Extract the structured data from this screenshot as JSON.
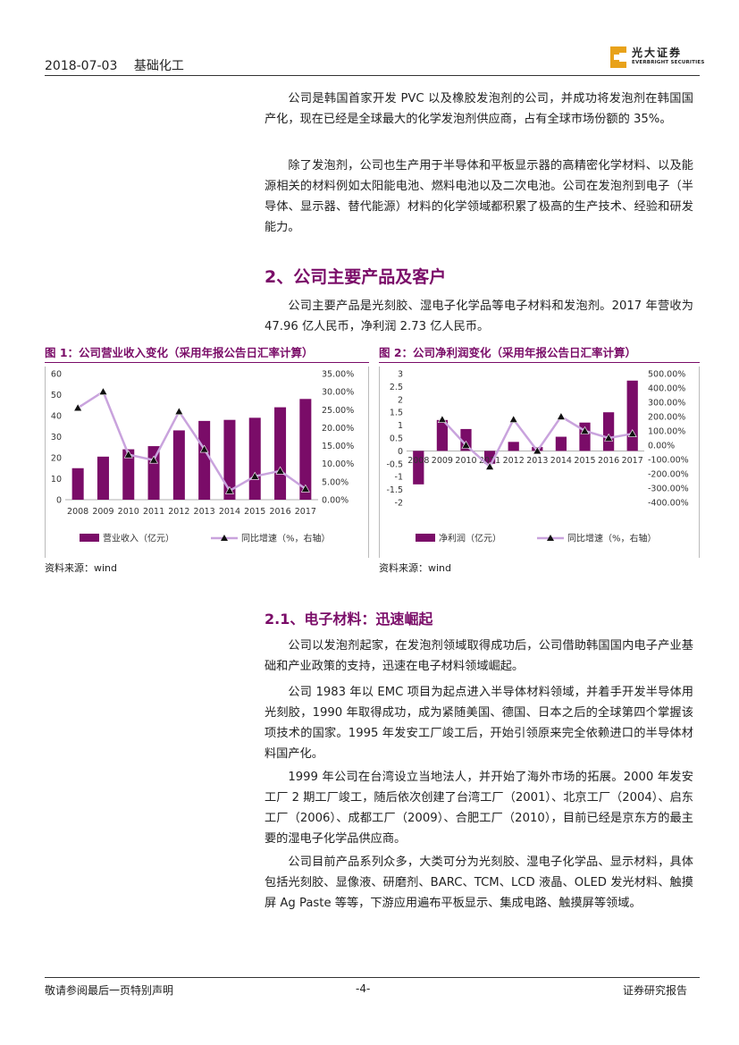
{
  "header": {
    "date": "2018-07-03",
    "category": "基础化工",
    "logo_cn": "光大证券",
    "logo_en": "EVERBRIGHT SECURITIES"
  },
  "paragraphs": [
    "公司是韩国首家开发 PVC 以及橡胶发泡剂的公司，并成功将发泡剂在韩国国产化，现在已经是全球最大的化学发泡剂供应商，占有全球市场份额的 35%。",
    "除了发泡剂，公司也生产用于半导体和平板显示器的高精密化学材料、以及能源相关的材料例如太阳能电池、燃料电池以及二次电池。公司在发泡剂到电子（半导体、显示器、替代能源）材料的化学领域都积累了极高的生产技术、经验和研发能力。"
  ],
  "section2": {
    "heading": "2、公司主要产品及客户",
    "paragraph": "公司主要产品是光刻胶、湿电子化学品等电子材料和发泡剂。2017 年营收为 47.96 亿人民币，净利润 2.73 亿人民币。"
  },
  "figure1": {
    "title": "图 1：公司营业收入变化（采用年报公告日汇率计算）",
    "source": "资料来源：wind"
  },
  "figure2": {
    "title": "图 2：公司净利润变化（采用年报公告日汇率计算）",
    "source": "资料来源：wind"
  },
  "chart_data": [
    {
      "type": "bar",
      "categories": [
        "2008",
        "2009",
        "2010",
        "2011",
        "2012",
        "2013",
        "2014",
        "2015",
        "2016",
        "2017"
      ],
      "series": [
        {
          "name": "营业收入（亿元）",
          "axis": "left",
          "values": [
            15,
            20.5,
            24,
            25.5,
            33,
            37.5,
            38,
            39,
            44,
            47.96
          ]
        },
        {
          "name": "同比增速（%，右轴）",
          "type": "line",
          "axis": "right",
          "values": [
            25.5,
            30,
            12.5,
            11,
            24.5,
            14,
            2.5,
            6.5,
            8,
            3
          ]
        }
      ],
      "ylim_left": [
        0,
        60
      ],
      "yticks_left": [
        "0",
        "10",
        "20",
        "30",
        "40",
        "50",
        "60"
      ],
      "ylim_right": [
        0,
        35
      ],
      "yticks_right": [
        "0.00%",
        "5.00%",
        "10.00%",
        "15.00%",
        "20.00%",
        "25.00%",
        "30.00%",
        "35.00%"
      ],
      "legend": "bottom",
      "colors": {
        "bar": "#7a0c68",
        "line": "#c9a3dd",
        "marker": "#111111"
      }
    },
    {
      "type": "bar",
      "categories": [
        "2008",
        "2009",
        "2010",
        "2011",
        "2012",
        "2013",
        "2014",
        "2015",
        "2016",
        "2017"
      ],
      "series": [
        {
          "name": "净利润（亿元）",
          "axis": "left",
          "values": [
            -1.3,
            1.2,
            0.85,
            -0.5,
            0.35,
            0.15,
            0.55,
            1.1,
            1.5,
            2.73
          ]
        },
        {
          "name": "同比增速（%，右轴）",
          "type": "line",
          "axis": "right",
          "values": [
            null,
            180,
            0,
            -150,
            180,
            -40,
            200,
            100,
            50,
            80
          ]
        }
      ],
      "ylim_left": [
        -2,
        3
      ],
      "yticks_left": [
        "-2",
        "-1.5",
        "-1",
        "-0.5",
        "0",
        "0.5",
        "1",
        "1.5",
        "2",
        "2.5",
        "3"
      ],
      "ylim_right": [
        -400,
        500
      ],
      "yticks_right": [
        "-400.00%",
        "-300.00%",
        "-200.00%",
        "-100.00%",
        "0.00%",
        "100.00%",
        "200.00%",
        "300.00%",
        "400.00%",
        "500.00%"
      ],
      "legend": "bottom",
      "colors": {
        "bar": "#7a0c68",
        "line": "#c9a3dd",
        "marker": "#111111"
      }
    }
  ],
  "section21": {
    "heading": "2.1、电子材料：迅速崛起",
    "paragraphs": [
      "公司以发泡剂起家，在发泡剂领域取得成功后，公司借助韩国国内电子产业基础和产业政策的支持，迅速在电子材料领域崛起。",
      "公司 1983 年以 EMC 项目为起点进入半导体材料领域，并着手开发半导体用光刻胶，1990 年取得成功，成为紧随美国、德国、日本之后的全球第四个掌握该项技术的国家。1995 年发安工厂竣工后，开始引领原来完全依赖进口的半导体材料国产化。",
      "1999 年公司在台湾设立当地法人，并开始了海外市场的拓展。2000 年发安工厂 2 期工厂竣工，随后依次创建了台湾工厂（2001）、北京工厂（2004）、启东工厂（2006）、成都工厂（2009）、合肥工厂（2010），目前已经是京东方的最主要的湿电子化学品供应商。",
      "公司目前产品系列众多，大类可分为光刻胶、湿电子化学品、显示材料，具体包括光刻胶、显像液、研磨剂、BARC、TCM、LCD 液晶、OLED 发光材料、触摸屏 Ag Paste 等等，下游应用遍布平板显示、集成电路、触摸屏等领域。"
    ]
  },
  "footer": {
    "left": "敬请参阅最后一页特别声明",
    "center": "-4-",
    "right": "证券研究报告"
  }
}
